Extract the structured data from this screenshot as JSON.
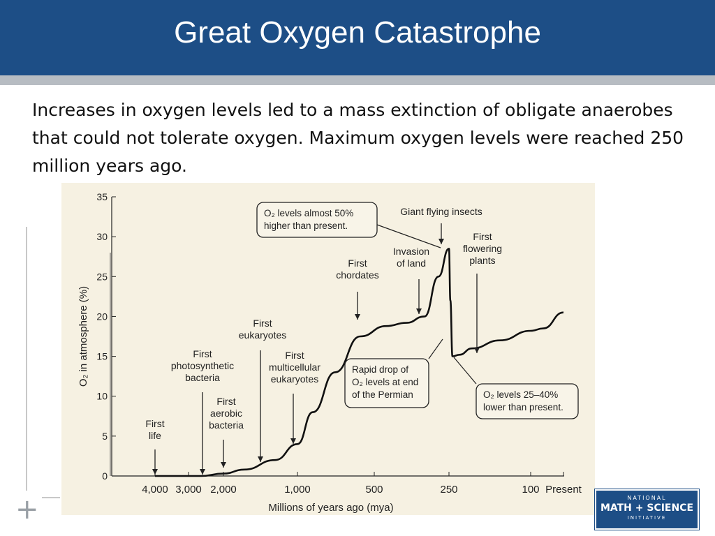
{
  "slide": {
    "title": "Great Oxygen Catastrophe",
    "intro": "Increases in oxygen levels led to a mass extinction of obligate anaerobes that could not tolerate oxygen. Maximum oxygen levels were reached 250 million years ago."
  },
  "logo": {
    "line1": "NATIONAL",
    "line2": "MATH + SCIENCE",
    "line3": "INITIATIVE"
  },
  "chart_data": {
    "type": "line",
    "xlabel": "Millions of years ago (mya)",
    "ylabel": "O₂ in atmosphere (%)",
    "ylim": [
      0,
      35
    ],
    "y_ticks": [
      0,
      5,
      10,
      15,
      20,
      25,
      30,
      35
    ],
    "x_ticks": [
      "4,000",
      "3,000",
      "2,000",
      "1,000",
      "500",
      "250",
      "100",
      "Present"
    ],
    "grid": false,
    "background": "#f6f1e2",
    "line_color": "#111111",
    "series": [
      {
        "x": [
          "4,000",
          "3,000",
          "2,400",
          "2,000",
          "1,600",
          "1,200",
          "1,000",
          "800",
          "650",
          "550",
          "450",
          "370",
          "300",
          "270",
          "250",
          "245",
          "240",
          "220",
          "180",
          "130",
          "100",
          "70",
          "Present"
        ],
        "values": [
          0,
          0,
          0,
          0.3,
          0.8,
          2.0,
          4.0,
          8.0,
          13.0,
          17.5,
          18.8,
          19.2,
          20.0,
          25.0,
          28.5,
          22.0,
          15.0,
          15.2,
          16.0,
          17.0,
          18.2,
          18.5,
          20.5
        ]
      }
    ],
    "annotations": [
      {
        "lines": [
          "First",
          "life"
        ]
      },
      {
        "lines": [
          "First",
          "photosynthetic",
          "bacteria"
        ]
      },
      {
        "lines": [
          "First",
          "aerobic",
          "bacteria"
        ]
      },
      {
        "lines": [
          "First",
          "eukaryotes"
        ]
      },
      {
        "lines": [
          "First",
          "multicellular",
          "eukaryotes"
        ]
      },
      {
        "lines": [
          "First",
          "chordates"
        ]
      },
      {
        "lines": [
          "Invasion",
          "of land"
        ]
      },
      {
        "lines": [
          "Giant flying insects"
        ]
      },
      {
        "lines": [
          "First",
          "flowering",
          "plants"
        ]
      }
    ],
    "callouts": [
      {
        "lines": [
          "O₂ levels almost 50%",
          "higher than present."
        ]
      },
      {
        "lines": [
          "Rapid drop of",
          "O₂ levels at end",
          "of the Permian"
        ]
      },
      {
        "lines": [
          "O₂ levels 25–40%",
          "lower than present."
        ]
      }
    ]
  }
}
